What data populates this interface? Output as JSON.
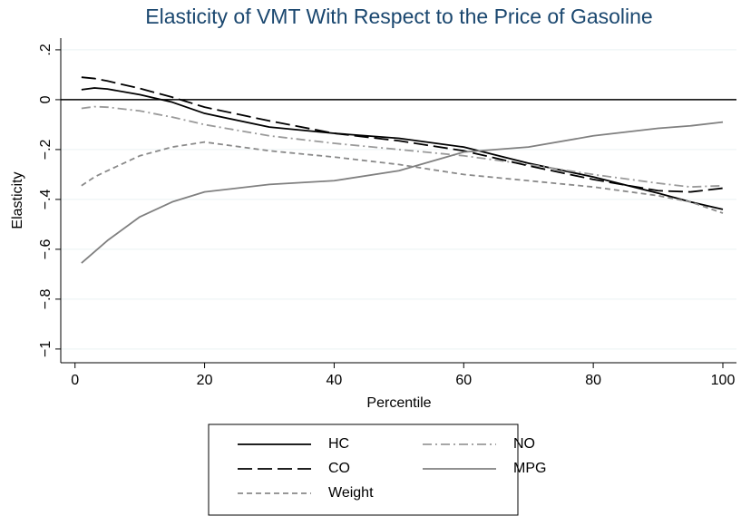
{
  "chart_data": {
    "type": "line",
    "title": "Elasticity of VMT With Respect to the Price of Gasoline",
    "xlabel": "Percentile",
    "ylabel": "Elasticity",
    "x": [
      1,
      3,
      5,
      10,
      15,
      20,
      30,
      40,
      50,
      60,
      70,
      80,
      90,
      95,
      100
    ],
    "series": [
      {
        "name": "HC",
        "color": "#000000",
        "dash": "none",
        "values": [
          0.04,
          0.047,
          0.043,
          0.02,
          -0.01,
          -0.055,
          -0.11,
          -0.135,
          -0.155,
          -0.19,
          -0.255,
          -0.31,
          -0.375,
          -0.41,
          -0.44
        ]
      },
      {
        "name": "NO",
        "color": "#9a9a9a",
        "dash": "10 4 2 4",
        "values": [
          -0.035,
          -0.028,
          -0.03,
          -0.045,
          -0.07,
          -0.1,
          -0.145,
          -0.175,
          -0.2,
          -0.225,
          -0.26,
          -0.3,
          -0.335,
          -0.35,
          -0.345
        ]
      },
      {
        "name": "CO",
        "color": "#000000",
        "dash": "16 6",
        "values": [
          0.09,
          0.085,
          0.075,
          0.045,
          0.01,
          -0.03,
          -0.085,
          -0.135,
          -0.165,
          -0.205,
          -0.265,
          -0.32,
          -0.365,
          -0.37,
          -0.355
        ]
      },
      {
        "name": "MPG",
        "color": "#808080",
        "dash": "none",
        "values": [
          -0.655,
          -0.61,
          -0.565,
          -0.47,
          -0.41,
          -0.37,
          -0.34,
          -0.325,
          -0.285,
          -0.21,
          -0.19,
          -0.145,
          -0.115,
          -0.105,
          -0.09
        ]
      },
      {
        "name": "Weight",
        "color": "#8a8a8a",
        "dash": "6 4",
        "values": [
          -0.345,
          -0.31,
          -0.285,
          -0.225,
          -0.19,
          -0.17,
          -0.205,
          -0.23,
          -0.26,
          -0.3,
          -0.325,
          -0.35,
          -0.385,
          -0.41,
          -0.455
        ]
      }
    ],
    "xlim": [
      -2.2,
      102.1
    ],
    "ylim": [
      -1.055,
      0.247
    ],
    "xticks": [
      0,
      20,
      40,
      60,
      80,
      100
    ],
    "yticks": [
      {
        "value": 0.2,
        "label": ".2"
      },
      0,
      {
        "value": -0.2,
        "label": "−.2"
      },
      {
        "value": -0.4,
        "label": "−.4"
      },
      {
        "value": -0.6,
        "label": "−.6"
      },
      {
        "value": -0.8,
        "label": "−.8"
      },
      {
        "value": -1,
        "label": "−1"
      }
    ],
    "yline": 0,
    "grid": true,
    "legend": "bottom"
  }
}
